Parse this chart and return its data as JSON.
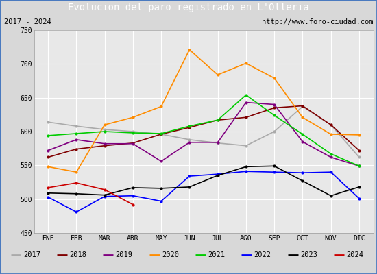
{
  "title": "Evolucion del paro registrado en L'Olleria",
  "subtitle_left": "2017 - 2024",
  "subtitle_right": "http://www.foro-ciudad.com",
  "months": [
    "ENE",
    "FEB",
    "MAR",
    "ABR",
    "MAY",
    "JUN",
    "JUL",
    "AGO",
    "SEP",
    "OCT",
    "NOV",
    "DIC"
  ],
  "ylim": [
    450,
    750
  ],
  "yticks": [
    450,
    500,
    550,
    600,
    650,
    700,
    750
  ],
  "series": {
    "2017": {
      "color": "#aaaaaa",
      "linewidth": 1.2,
      "data": [
        614,
        608,
        603,
        600,
        596,
        588,
        583,
        579,
        600,
        637,
        610,
        562
      ]
    },
    "2018": {
      "color": "#800000",
      "linewidth": 1.2,
      "data": [
        562,
        574,
        579,
        583,
        596,
        606,
        617,
        621,
        635,
        638,
        610,
        572
      ]
    },
    "2019": {
      "color": "#800080",
      "linewidth": 1.2,
      "data": [
        572,
        588,
        582,
        582,
        556,
        584,
        584,
        643,
        640,
        585,
        562,
        549
      ]
    },
    "2020": {
      "color": "#ff8c00",
      "linewidth": 1.2,
      "data": [
        548,
        540,
        610,
        621,
        637,
        721,
        684,
        701,
        679,
        621,
        596,
        595
      ]
    },
    "2021": {
      "color": "#00cc00",
      "linewidth": 1.2,
      "data": [
        594,
        597,
        600,
        598,
        597,
        608,
        617,
        654,
        624,
        596,
        567,
        549
      ]
    },
    "2022": {
      "color": "#0000ff",
      "linewidth": 1.2,
      "data": [
        503,
        481,
        504,
        505,
        497,
        534,
        537,
        541,
        540,
        539,
        540,
        501
      ]
    },
    "2023": {
      "color": "#000000",
      "linewidth": 1.2,
      "data": [
        509,
        508,
        506,
        517,
        516,
        518,
        535,
        548,
        549,
        527,
        505,
        518
      ]
    },
    "2024": {
      "color": "#cc0000",
      "linewidth": 1.2,
      "data": [
        517,
        524,
        514,
        492,
        null,
        null,
        null,
        null,
        null,
        null,
        null,
        null
      ]
    }
  },
  "legend_order": [
    "2017",
    "2018",
    "2019",
    "2020",
    "2021",
    "2022",
    "2023",
    "2024"
  ],
  "bg_color": "#d8d8d8",
  "plot_bg_color": "#e8e8e8",
  "title_bg_color": "#4a7abf",
  "title_color": "#ffffff",
  "grid_color": "#ffffff",
  "subtitle_bg_color": "#d0d0d0",
  "border_color": "#4a7abf"
}
